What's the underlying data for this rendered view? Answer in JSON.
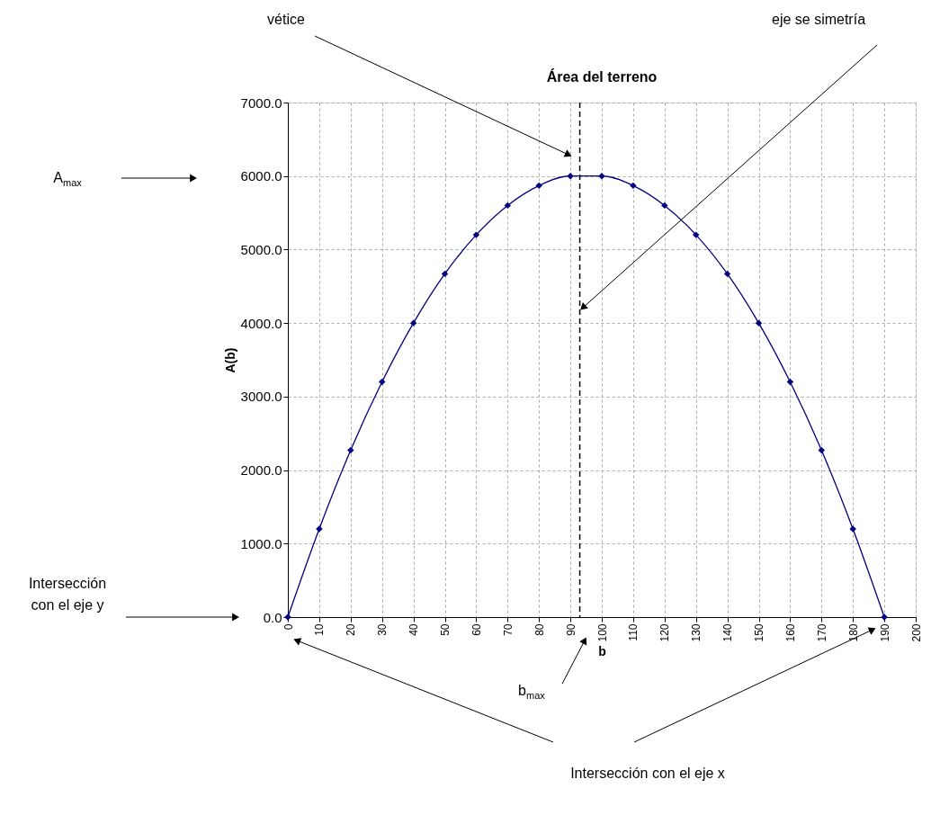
{
  "chart_data": {
    "type": "line",
    "title": "Área del terreno",
    "xlabel": "b",
    "ylabel": "A(b)",
    "x": [
      0,
      10,
      20,
      30,
      40,
      50,
      60,
      70,
      80,
      90,
      100,
      110,
      120,
      130,
      140,
      150,
      160,
      170,
      180,
      190
    ],
    "series": [
      {
        "color": "#000080",
        "values": [
          0,
          1200,
          2270,
          3200,
          4000,
          4670,
          5200,
          5600,
          5870,
          6000,
          6000,
          5870,
          5600,
          5200,
          4670,
          4000,
          3200,
          2270,
          1200,
          0
        ]
      }
    ],
    "xlim": [
      0,
      200
    ],
    "xticks": [
      0,
      10,
      20,
      30,
      40,
      50,
      60,
      70,
      80,
      90,
      100,
      110,
      120,
      130,
      140,
      150,
      160,
      170,
      180,
      190,
      200
    ],
    "ylim": [
      0,
      7000
    ],
    "yticks": [
      {
        "value": 0,
        "label": "0.0"
      },
      {
        "value": 1000,
        "label": "1000.0"
      },
      {
        "value": 2000,
        "label": "2000.0"
      },
      {
        "value": 3000,
        "label": "3000.0"
      },
      {
        "value": 4000,
        "label": "4000.0"
      },
      {
        "value": 5000,
        "label": "5000.0"
      },
      {
        "value": 6000,
        "label": "6000.0"
      },
      {
        "value": 7000,
        "label": "7000.0"
      }
    ],
    "grid": true,
    "marker": "diamond",
    "line_style": "solid",
    "ref_lines": [
      {
        "axis": "x",
        "value": 93,
        "color": "#000000",
        "line_style": "dashed"
      }
    ],
    "annotations": [
      "vétice",
      "eje se simetría",
      "A$_{max}$",
      "Intersección con el eje y",
      "b$_{max}$",
      "Intersección con el eje x"
    ]
  }
}
